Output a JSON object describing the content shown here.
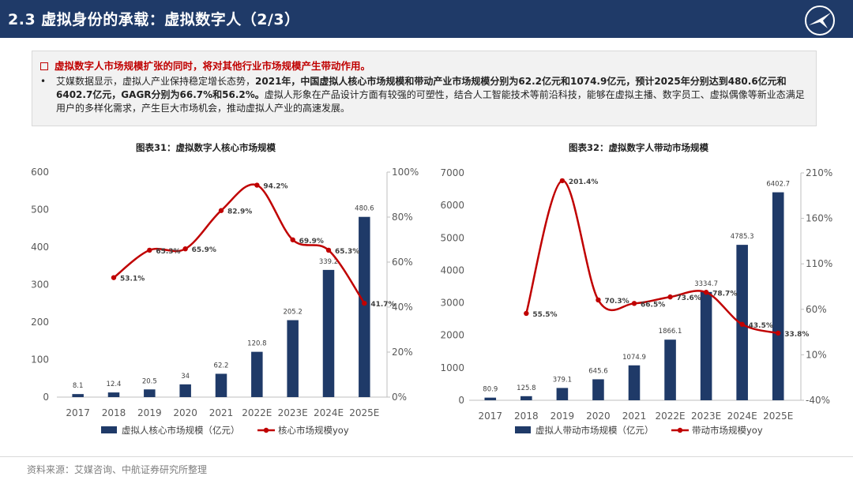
{
  "header": {
    "title": "2.3 虚拟身份的承载：虚拟数字人（2/3）",
    "logo_icon": "avic-plane-logo"
  },
  "summary": {
    "headline": "虚拟数字人市场规模扩张的同时，将对其他行业市场规模产生带动作用。",
    "bullet": "•",
    "para_prefix": "艾媒数据显示，虚拟人产业保持稳定增长态势，",
    "para_bold": "2021年，中国虚拟人核心市场规模和带动产业市场规模分别为62.2亿元和1074.9亿元，预计2025年分别达到480.6亿元和6402.7亿元，GAGR分别为66.7%和56.2%。",
    "para_suffix": "虚拟人形象在产品设计方面有较强的可塑性，结合人工智能技术等前沿科技，能够在虚拟主播、数字员工、虚拟偶像等新业态满足用户的多样化需求，产生巨大市场机会，推动虚拟人产业的高速发展。"
  },
  "source": "资料来源：艾媒咨询、中航证券研究所整理",
  "chart_data": [
    {
      "type": "bar",
      "title": "图表31：虚拟数字人核心市场规模",
      "categories": [
        "2017",
        "2018",
        "2019",
        "2020",
        "2021",
        "2022E",
        "2023E",
        "2024E",
        "2025E"
      ],
      "series": [
        {
          "name": "虚拟人核心市场规模（亿元）",
          "type": "bar",
          "axis": "left",
          "values": [
            8.1,
            12.4,
            20.5,
            34,
            62.2,
            120.8,
            205.2,
            339.2,
            480.6
          ],
          "labels": [
            "8.1",
            "12.4",
            "20.5",
            "34",
            "62.2",
            "120.8",
            "205.2",
            "339.2",
            "480.6"
          ]
        },
        {
          "name": "核心市场规模yoy",
          "type": "line",
          "axis": "right",
          "values": [
            null,
            53.1,
            65.3,
            65.9,
            82.9,
            94.2,
            69.9,
            65.3,
            41.7
          ],
          "labels": [
            "",
            "53.1%",
            "65.3%",
            "65.9%",
            "82.9%",
            "94.2%",
            "69.9%",
            "65.3%",
            "41.7%"
          ]
        }
      ],
      "ylim": [
        0,
        600
      ],
      "yticks": [
        "0",
        "100",
        "200",
        "300",
        "400",
        "500",
        "600"
      ],
      "y2lim": [
        0,
        100
      ],
      "y2ticks": [
        "0%",
        "20%",
        "40%",
        "60%",
        "80%",
        "100%"
      ],
      "legend": "bottom",
      "bar_color": "#1f3a68",
      "line_color": "#c00000"
    },
    {
      "type": "bar",
      "title": "图表32：虚拟数字人带动市场规模",
      "categories": [
        "2017",
        "2018",
        "2019",
        "2020",
        "2021",
        "2022E",
        "2023E",
        "2024E",
        "2025E"
      ],
      "series": [
        {
          "name": "虚拟人带动市场规模（亿元）",
          "type": "bar",
          "axis": "left",
          "values": [
            80.9,
            125.8,
            379.1,
            645.6,
            1074.9,
            1866.1,
            3334.7,
            4785.3,
            6402.7
          ],
          "labels": [
            "80.9",
            "125.8",
            "379.1",
            "645.6",
            "1074.9",
            "1866.1",
            "3334.7",
            "4785.3",
            "6402.7"
          ]
        },
        {
          "name": "带动市场规模yoy",
          "type": "line",
          "axis": "right",
          "values": [
            null,
            55.5,
            201.4,
            70.3,
            66.5,
            73.6,
            78.7,
            43.5,
            33.8
          ],
          "labels": [
            "",
            "55.5%",
            "201.4%",
            "70.3%",
            "66.5%",
            "73.6%",
            "78.7%",
            "43.5%",
            "33.8%"
          ]
        }
      ],
      "ylim": [
        0,
        7000
      ],
      "yticks": [
        "0",
        "1000",
        "2000",
        "3000",
        "4000",
        "5000",
        "6000",
        "7000"
      ],
      "y2lim": [
        -40,
        210
      ],
      "y2ticks": [
        "-40%",
        "10%",
        "60%",
        "110%",
        "160%",
        "210%"
      ],
      "legend": "bottom",
      "bar_color": "#1f3a68",
      "line_color": "#c00000"
    }
  ]
}
